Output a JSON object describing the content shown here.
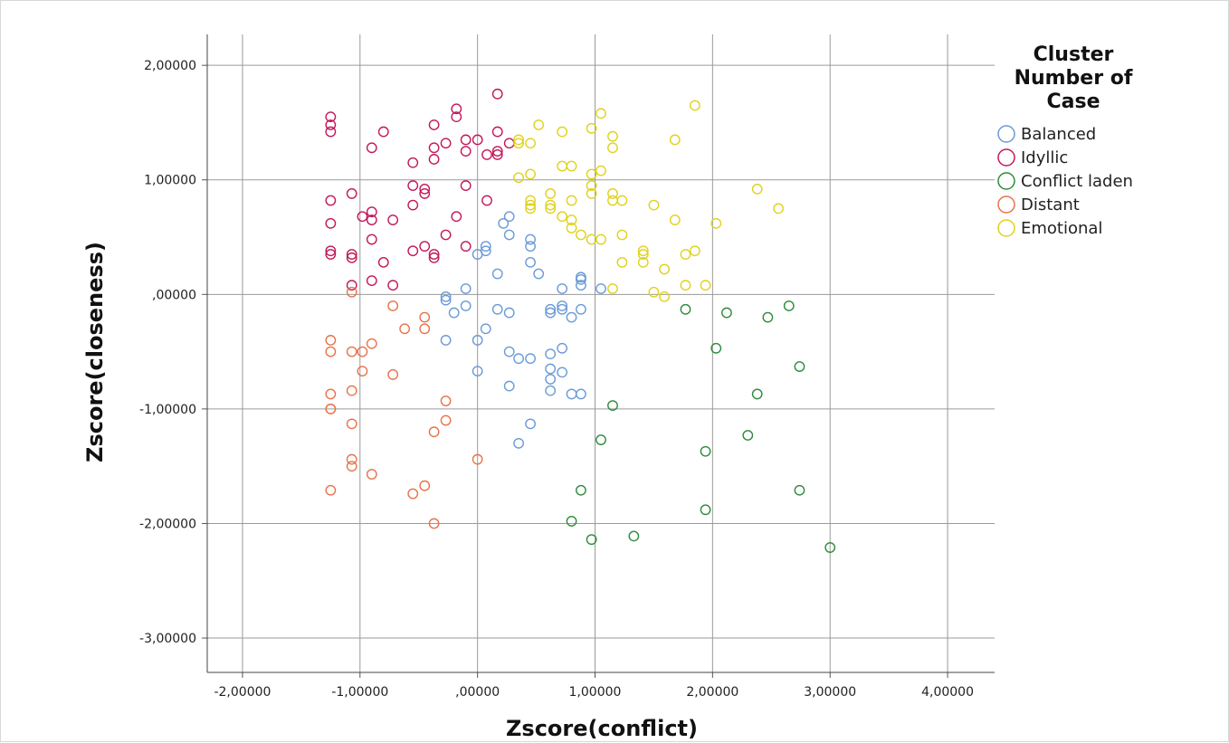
{
  "chart_data": {
    "type": "scatter",
    "xlabel": "Zscore(conflict)",
    "ylabel": "Zscore(closeness)",
    "xlim": [
      -2.3,
      4.4
    ],
    "ylim": [
      -3.3,
      2.27
    ],
    "grid": true,
    "x_ticks": [
      -2,
      -1,
      0,
      1,
      2,
      3,
      4
    ],
    "y_ticks": [
      -3,
      -2,
      -1,
      0,
      1,
      2
    ],
    "x_tick_labels": [
      "-2,00000",
      "-1,00000",
      ",00000",
      "1,00000",
      "2,00000",
      "3,00000",
      "4,00000"
    ],
    "y_tick_labels": [
      "-3,00000",
      "-2,00000",
      "-1,00000",
      ",00000",
      "1,00000",
      "2,00000"
    ],
    "legend": {
      "title_lines": [
        "Cluster",
        "Number of",
        "Case"
      ],
      "placement": "right"
    },
    "series": [
      {
        "name": "Balanced",
        "color": "#6a9bd8",
        "points": [
          [
            0.22,
            0.62
          ],
          [
            0.27,
            0.68
          ],
          [
            0.27,
            0.52
          ],
          [
            0.07,
            0.38
          ],
          [
            0.07,
            0.42
          ],
          [
            0.0,
            0.35
          ],
          [
            0.45,
            0.48
          ],
          [
            0.45,
            0.42
          ],
          [
            0.45,
            0.28
          ],
          [
            0.52,
            0.18
          ],
          [
            0.17,
            0.18
          ],
          [
            -0.1,
            0.05
          ],
          [
            -0.27,
            -0.02
          ],
          [
            -0.27,
            -0.05
          ],
          [
            -0.2,
            -0.16
          ],
          [
            -0.1,
            -0.1
          ],
          [
            0.17,
            -0.13
          ],
          [
            0.27,
            -0.16
          ],
          [
            0.07,
            -0.3
          ],
          [
            0.0,
            -0.4
          ],
          [
            -0.27,
            -0.4
          ],
          [
            0.62,
            -0.13
          ],
          [
            0.62,
            -0.16
          ],
          [
            0.72,
            -0.1
          ],
          [
            0.72,
            -0.13
          ],
          [
            0.72,
            0.05
          ],
          [
            0.8,
            -0.2
          ],
          [
            0.88,
            -0.13
          ],
          [
            0.88,
            0.08
          ],
          [
            0.88,
            0.13
          ],
          [
            0.88,
            0.15
          ],
          [
            1.05,
            0.05
          ],
          [
            0.27,
            -0.5
          ],
          [
            0.35,
            -0.56
          ],
          [
            0.45,
            -0.56
          ],
          [
            0.62,
            -0.52
          ],
          [
            0.62,
            -0.65
          ],
          [
            0.62,
            -0.74
          ],
          [
            0.62,
            -0.84
          ],
          [
            0.72,
            -0.47
          ],
          [
            0.72,
            -0.68
          ],
          [
            0.8,
            -0.87
          ],
          [
            0.88,
            -0.87
          ],
          [
            0.0,
            -0.67
          ],
          [
            0.27,
            -0.8
          ],
          [
            0.45,
            -1.13
          ],
          [
            0.35,
            -1.3
          ]
        ]
      },
      {
        "name": "Idyllic",
        "color": "#c2185b",
        "points": [
          [
            -1.25,
            1.55
          ],
          [
            -1.25,
            1.48
          ],
          [
            -1.25,
            1.42
          ],
          [
            -1.25,
            0.82
          ],
          [
            -1.25,
            0.62
          ],
          [
            -1.25,
            0.38
          ],
          [
            -1.25,
            0.35
          ],
          [
            -1.07,
            0.88
          ],
          [
            -1.07,
            0.35
          ],
          [
            -1.07,
            0.32
          ],
          [
            -1.07,
            0.08
          ],
          [
            -0.98,
            0.68
          ],
          [
            -0.9,
            1.28
          ],
          [
            -0.9,
            0.72
          ],
          [
            -0.9,
            0.65
          ],
          [
            -0.9,
            0.48
          ],
          [
            -0.9,
            0.12
          ],
          [
            -0.8,
            1.42
          ],
          [
            -0.8,
            0.28
          ],
          [
            -0.72,
            0.65
          ],
          [
            -0.72,
            0.08
          ],
          [
            -0.55,
            1.15
          ],
          [
            -0.55,
            0.95
          ],
          [
            -0.55,
            0.78
          ],
          [
            -0.55,
            0.38
          ],
          [
            -0.45,
            0.88
          ],
          [
            -0.45,
            0.92
          ],
          [
            -0.45,
            0.42
          ],
          [
            -0.37,
            1.48
          ],
          [
            -0.37,
            1.28
          ],
          [
            -0.37,
            1.18
          ],
          [
            -0.37,
            0.35
          ],
          [
            -0.37,
            0.32
          ],
          [
            -0.27,
            1.32
          ],
          [
            -0.27,
            0.52
          ],
          [
            -0.18,
            1.62
          ],
          [
            -0.18,
            1.55
          ],
          [
            -0.18,
            0.68
          ],
          [
            -0.1,
            1.35
          ],
          [
            -0.1,
            1.25
          ],
          [
            -0.1,
            0.95
          ],
          [
            -0.1,
            0.42
          ],
          [
            0.0,
            1.35
          ],
          [
            0.08,
            1.22
          ],
          [
            0.08,
            0.82
          ],
          [
            0.17,
            1.75
          ],
          [
            0.17,
            1.42
          ],
          [
            0.17,
            1.25
          ],
          [
            0.17,
            1.22
          ],
          [
            0.27,
            1.32
          ]
        ]
      },
      {
        "name": "Conflict laden",
        "color": "#2e8b3a",
        "points": [
          [
            1.77,
            -0.13
          ],
          [
            2.12,
            -0.16
          ],
          [
            2.47,
            -0.2
          ],
          [
            2.65,
            -0.1
          ],
          [
            2.03,
            -0.47
          ],
          [
            2.74,
            -0.63
          ],
          [
            2.38,
            -0.87
          ],
          [
            1.15,
            -0.97
          ],
          [
            2.3,
            -1.23
          ],
          [
            1.05,
            -1.27
          ],
          [
            1.94,
            -1.37
          ],
          [
            0.88,
            -1.71
          ],
          [
            2.74,
            -1.71
          ],
          [
            1.94,
            -1.88
          ],
          [
            0.8,
            -1.98
          ],
          [
            0.97,
            -2.14
          ],
          [
            1.33,
            -2.11
          ],
          [
            3.0,
            -2.21
          ]
        ]
      },
      {
        "name": "Distant",
        "color": "#e8734a",
        "points": [
          [
            -1.07,
            0.02
          ],
          [
            -0.72,
            -0.1
          ],
          [
            -0.62,
            -0.3
          ],
          [
            -0.45,
            -0.2
          ],
          [
            -0.45,
            -0.3
          ],
          [
            -1.25,
            -0.4
          ],
          [
            -1.25,
            -0.5
          ],
          [
            -1.07,
            -0.5
          ],
          [
            -0.98,
            -0.5
          ],
          [
            -0.9,
            -0.43
          ],
          [
            -0.98,
            -0.67
          ],
          [
            -0.72,
            -0.7
          ],
          [
            -1.25,
            -0.87
          ],
          [
            -1.07,
            -0.84
          ],
          [
            -0.27,
            -0.93
          ],
          [
            -1.25,
            -1.0
          ],
          [
            -1.25,
            -1.0
          ],
          [
            -1.07,
            -1.13
          ],
          [
            -0.27,
            -1.1
          ],
          [
            -0.37,
            -1.2
          ],
          [
            -1.07,
            -1.44
          ],
          [
            -1.07,
            -1.5
          ],
          [
            0.0,
            -1.44
          ],
          [
            -0.9,
            -1.57
          ],
          [
            -1.25,
            -1.71
          ],
          [
            -0.45,
            -1.67
          ],
          [
            -0.55,
            -1.74
          ],
          [
            -0.37,
            -2.0
          ]
        ]
      },
      {
        "name": "Emotional",
        "color": "#e0d21c",
        "points": [
          [
            0.35,
            1.35
          ],
          [
            0.35,
            1.32
          ],
          [
            0.45,
            1.32
          ],
          [
            0.52,
            1.48
          ],
          [
            0.72,
            1.42
          ],
          [
            1.05,
            1.58
          ],
          [
            0.97,
            1.45
          ],
          [
            1.15,
            1.38
          ],
          [
            1.15,
            1.28
          ],
          [
            1.85,
            1.65
          ],
          [
            1.68,
            1.35
          ],
          [
            0.35,
            1.02
          ],
          [
            0.45,
            1.05
          ],
          [
            0.72,
            1.12
          ],
          [
            0.8,
            1.12
          ],
          [
            0.97,
            1.05
          ],
          [
            0.97,
            0.95
          ],
          [
            0.97,
            0.88
          ],
          [
            1.05,
            1.08
          ],
          [
            0.45,
            0.82
          ],
          [
            0.45,
            0.78
          ],
          [
            0.45,
            0.75
          ],
          [
            0.62,
            0.88
          ],
          [
            0.62,
            0.78
          ],
          [
            0.62,
            0.75
          ],
          [
            0.72,
            0.68
          ],
          [
            0.8,
            0.65
          ],
          [
            0.8,
            0.58
          ],
          [
            0.8,
            0.82
          ],
          [
            0.88,
            0.52
          ],
          [
            0.97,
            0.48
          ],
          [
            1.05,
            0.48
          ],
          [
            1.15,
            0.88
          ],
          [
            1.15,
            0.82
          ],
          [
            1.23,
            0.82
          ],
          [
            1.23,
            0.52
          ],
          [
            1.23,
            0.28
          ],
          [
            1.5,
            0.78
          ],
          [
            1.68,
            0.65
          ],
          [
            1.41,
            0.38
          ],
          [
            1.41,
            0.35
          ],
          [
            1.41,
            0.28
          ],
          [
            1.59,
            0.22
          ],
          [
            1.77,
            0.35
          ],
          [
            1.85,
            0.38
          ],
          [
            2.03,
            0.62
          ],
          [
            2.38,
            0.92
          ],
          [
            2.56,
            0.75
          ],
          [
            1.15,
            0.05
          ],
          [
            1.5,
            0.02
          ],
          [
            1.59,
            -0.02
          ],
          [
            1.77,
            0.08
          ],
          [
            1.94,
            0.08
          ]
        ]
      }
    ]
  }
}
